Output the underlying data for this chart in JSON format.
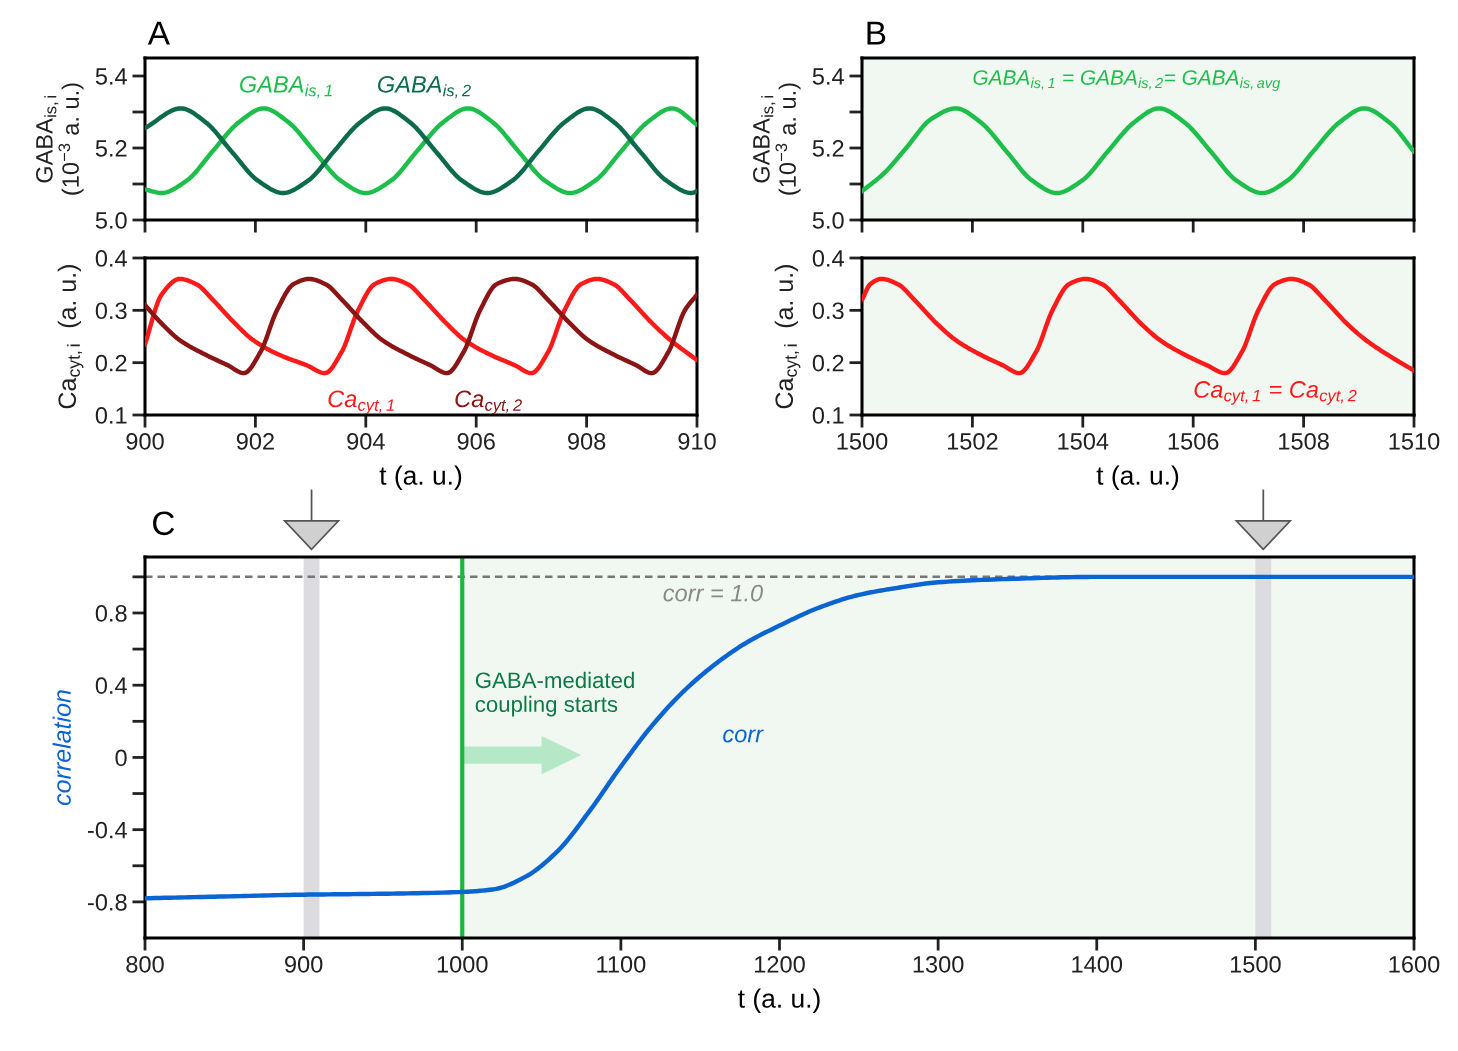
{
  "chart_data": [
    {
      "type": "line",
      "title": "A",
      "ylabel": "GABA$_{is,i}$\n(10$^{−3}$ a. u.)",
      "xlim": [
        900,
        910
      ],
      "xticks": [
        900,
        902,
        904,
        906,
        908,
        910
      ],
      "ylim": [
        5.0,
        5.45
      ],
      "yticks": [
        {
          "value": 5.0,
          "label": "5.0"
        },
        {
          "value": 5.1,
          "label": null
        },
        5.2,
        {
          "value": 5.3,
          "label": null
        },
        5.4
      ],
      "tick_labels": "y",
      "series": [
        {
          "name": "GABA$_{is,1}$",
          "color": "#1dbf4a",
          "x": [
            900.0,
            900.3,
            900.76,
            901.22,
            901.69,
            902.15,
            902.61,
            903.07,
            903.54,
            904.0,
            904.46,
            904.92,
            905.39,
            905.85,
            906.31,
            906.77,
            907.24,
            907.7,
            908.16,
            908.62,
            909.09,
            909.55,
            910.0
          ],
          "values": [
            5.085,
            5.075,
            5.11,
            5.19,
            5.27,
            5.31,
            5.27,
            5.19,
            5.11,
            5.075,
            5.11,
            5.19,
            5.27,
            5.31,
            5.27,
            5.19,
            5.11,
            5.075,
            5.11,
            5.19,
            5.27,
            5.31,
            5.265
          ]
        },
        {
          "name": "GABA$_{is,2}$",
          "color": "#0b6b4b",
          "x": [
            900.0,
            900.65,
            901.11,
            901.57,
            902.04,
            902.5,
            902.96,
            903.42,
            903.89,
            904.35,
            904.81,
            905.27,
            905.74,
            906.2,
            906.66,
            907.12,
            907.59,
            908.05,
            908.51,
            908.97,
            909.44,
            909.9,
            910.0
          ],
          "values": [
            5.255,
            5.31,
            5.27,
            5.19,
            5.11,
            5.075,
            5.11,
            5.19,
            5.27,
            5.31,
            5.27,
            5.19,
            5.11,
            5.075,
            5.11,
            5.19,
            5.27,
            5.31,
            5.27,
            5.19,
            5.11,
            5.075,
            5.08
          ]
        }
      ]
    },
    {
      "type": "line",
      "xlabel": "t (a. u.)",
      "ylabel": "Ca$_{cyt,i}$  (a. u.)",
      "xlim": [
        900,
        910
      ],
      "xticks": [
        900,
        902,
        904,
        906,
        908,
        910
      ],
      "ylim": [
        0.1,
        0.4
      ],
      "yticks": [
        0.1,
        0.2,
        0.3,
        0.4
      ],
      "series": [
        {
          "name": "Ca$_{cyt,1}$",
          "color": "#ff1a1a",
          "x": [
            900.0,
            900.3,
            900.63,
            900.93,
            901.23,
            901.63,
            901.96,
            902.43,
            902.93,
            903.26,
            903.56,
            903.86,
            904.16,
            904.46,
            904.76,
            905.06,
            905.46,
            905.79,
            906.26,
            906.7,
            907.0,
            907.3,
            907.6,
            907.9,
            908.19,
            908.49,
            908.79,
            909.19,
            909.52,
            910.0
          ],
          "values": [
            0.235,
            0.33,
            0.36,
            0.35,
            0.32,
            0.275,
            0.243,
            0.215,
            0.195,
            0.18,
            0.22,
            0.3,
            0.35,
            0.36,
            0.35,
            0.32,
            0.275,
            0.243,
            0.215,
            0.195,
            0.18,
            0.22,
            0.3,
            0.35,
            0.36,
            0.35,
            0.32,
            0.275,
            0.243,
            0.205
          ]
        },
        {
          "name": "Ca$_{cyt,2}$",
          "color": "#8b1414",
          "x": [
            900.0,
            900.3,
            900.63,
            901.1,
            901.5,
            901.79,
            902.09,
            902.39,
            902.69,
            902.97,
            903.27,
            903.57,
            903.97,
            904.3,
            904.77,
            905.17,
            905.47,
            905.77,
            906.07,
            906.37,
            906.7,
            907.0,
            907.3,
            907.7,
            908.03,
            908.5,
            908.9,
            909.18,
            909.48,
            909.78,
            910.0
          ],
          "values": [
            0.31,
            0.275,
            0.243,
            0.215,
            0.195,
            0.18,
            0.22,
            0.3,
            0.35,
            0.36,
            0.35,
            0.32,
            0.275,
            0.243,
            0.215,
            0.195,
            0.18,
            0.22,
            0.3,
            0.35,
            0.36,
            0.35,
            0.32,
            0.275,
            0.243,
            0.215,
            0.195,
            0.18,
            0.22,
            0.3,
            0.33
          ]
        }
      ]
    },
    {
      "type": "line",
      "title": "B",
      "ylabel": "GABA$_{is,i}$\n(10$^{−3}$ a. u.)",
      "xlim": [
        1500,
        1510
      ],
      "xticks": [
        1500,
        1502,
        1504,
        1506,
        1508,
        1510
      ],
      "ylim": [
        5.0,
        5.45
      ],
      "yticks": [
        {
          "value": 5.0,
          "label": "5.0"
        },
        {
          "value": 5.1,
          "label": null
        },
        5.2,
        {
          "value": 5.3,
          "label": null
        },
        5.4
      ],
      "tick_labels": "y",
      "bands": [
        {
          "axis": "x",
          "from": 1500,
          "to": 1510,
          "color": "#f1f8f1"
        }
      ],
      "series": [
        {
          "name": "GABA$_{is,1}$ = GABA$_{is,2}$= GABA$_{is,avg}$",
          "color": "#1dbf4a",
          "x": [
            1500.0,
            1500.4,
            1500.8,
            1501.25,
            1501.7,
            1502.16,
            1502.62,
            1503.08,
            1503.53,
            1503.99,
            1504.45,
            1504.92,
            1505.38,
            1505.85,
            1506.32,
            1506.78,
            1507.25,
            1507.71,
            1508.17,
            1508.64,
            1509.1,
            1509.56,
            1510.0
          ],
          "values": [
            5.08,
            5.13,
            5.2,
            5.28,
            5.31,
            5.27,
            5.19,
            5.11,
            5.075,
            5.11,
            5.19,
            5.27,
            5.31,
            5.27,
            5.19,
            5.11,
            5.075,
            5.11,
            5.19,
            5.27,
            5.31,
            5.27,
            5.19
          ]
        }
      ]
    },
    {
      "type": "line",
      "xlabel": "t (a. u.)",
      "ylabel": "Ca$_{cyt,i}$  (a. u.)",
      "xlim": [
        1500,
        1510
      ],
      "xticks": [
        1500,
        1502,
        1504,
        1506,
        1508,
        1510
      ],
      "ylim": [
        0.1,
        0.4
      ],
      "yticks": [
        0.1,
        0.2,
        0.3,
        0.4
      ],
      "bands": [
        {
          "axis": "x",
          "from": 1500,
          "to": 1510,
          "color": "#f1f8f1"
        }
      ],
      "series": [
        {
          "name": "Ca$_{cyt,1}$ = Ca$_{cyt,2}$",
          "color": "#ff1a1a",
          "x": [
            1500.0,
            1500.15,
            1500.35,
            1500.65,
            1500.95,
            1501.35,
            1501.7,
            1502.15,
            1502.55,
            1502.85,
            1503.15,
            1503.45,
            1503.75,
            1504.05,
            1504.35,
            1504.65,
            1505.05,
            1505.4,
            1505.85,
            1506.25,
            1506.58,
            1506.88,
            1507.18,
            1507.48,
            1507.78,
            1508.08,
            1508.38,
            1508.78,
            1509.13,
            1509.6,
            1510.0
          ],
          "values": [
            0.32,
            0.35,
            0.36,
            0.35,
            0.32,
            0.275,
            0.243,
            0.215,
            0.195,
            0.18,
            0.22,
            0.3,
            0.35,
            0.36,
            0.35,
            0.32,
            0.275,
            0.243,
            0.215,
            0.195,
            0.18,
            0.22,
            0.3,
            0.35,
            0.36,
            0.35,
            0.32,
            0.275,
            0.243,
            0.21,
            0.185
          ]
        }
      ]
    },
    {
      "type": "line",
      "title": "C",
      "xlabel": "t (a. u.)",
      "ylabel": "correlation",
      "xlim": [
        800,
        1600
      ],
      "xticks": [
        800,
        900,
        1000,
        1100,
        1200,
        1300,
        1400,
        1500,
        1600
      ],
      "ylim": [
        -1.0,
        1.11
      ],
      "yticks": [
        -0.8,
        {
          "value": -0.6,
          "label": null
        },
        -0.4,
        {
          "value": -0.2,
          "label": null
        },
        0,
        {
          "value": 0.2,
          "label": null
        },
        0.4,
        {
          "value": 0.6,
          "label": null
        },
        0.8,
        {
          "value": 1.0,
          "label": null
        }
      ],
      "bands": [
        {
          "axis": "x",
          "from": 1000,
          "to": 1600,
          "color": "#f1f8f1"
        },
        {
          "axis": "x",
          "from": 900,
          "to": 910,
          "color": "#dcdce0"
        },
        {
          "axis": "x",
          "from": 1500,
          "to": 1510,
          "color": "#dcdce0"
        }
      ],
      "ref_lines": [
        {
          "axis": "y",
          "value": 1.0,
          "label": "corr = 1.0",
          "color": "#777777",
          "line_style": "dashed"
        },
        {
          "axis": "x",
          "value": 1000,
          "label": "GABA-mediated\ncoupling starts",
          "color": "#1db83a",
          "line_style": "solid"
        }
      ],
      "series": [
        {
          "name": "corr",
          "color": "#0a64d2",
          "x": [
            800,
            850,
            900,
            950,
            1000,
            1020,
            1040,
            1060,
            1080,
            1100,
            1120,
            1140,
            1160,
            1180,
            1200,
            1225,
            1250,
            1275,
            1300,
            1350,
            1400,
            1500,
            1600
          ],
          "values": [
            -0.78,
            -0.77,
            -0.76,
            -0.755,
            -0.745,
            -0.73,
            -0.66,
            -0.52,
            -0.3,
            -0.05,
            0.18,
            0.37,
            0.52,
            0.64,
            0.73,
            0.83,
            0.9,
            0.94,
            0.97,
            0.99,
            1.0,
            1.0,
            1.0
          ]
        }
      ]
    }
  ]
}
